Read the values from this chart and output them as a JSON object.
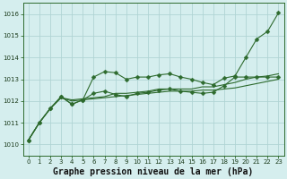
{
  "title": "Graphe pression niveau de la mer (hPa)",
  "bg_color": "#d5eeee",
  "grid_color": "#b0d4d4",
  "line_color": "#2d6a2d",
  "xlim": [
    -0.5,
    23.5
  ],
  "ylim": [
    1009.5,
    1016.5
  ],
  "yticks": [
    1010,
    1011,
    1012,
    1013,
    1014,
    1015,
    1016
  ],
  "xticks": [
    0,
    1,
    2,
    3,
    4,
    5,
    6,
    7,
    8,
    9,
    10,
    11,
    12,
    13,
    14,
    15,
    16,
    17,
    18,
    19,
    20,
    21,
    22,
    23
  ],
  "series": [
    {
      "y": [
        1010.2,
        1011.0,
        1011.65,
        1012.2,
        1011.85,
        1012.05,
        1013.1,
        1013.35,
        1013.3,
        1013.0,
        1013.1,
        1013.1,
        1013.2,
        1013.25,
        1013.1,
        1013.0,
        1012.85,
        1012.75,
        1013.05,
        1013.15,
        1014.0,
        1014.85,
        1015.2,
        1016.05
      ],
      "marker": true
    },
    {
      "y": [
        1010.2,
        1011.0,
        1011.65,
        1012.2,
        1011.85,
        1012.05,
        1012.35,
        1012.45,
        1012.3,
        1012.2,
        1012.35,
        1012.4,
        1012.5,
        1012.55,
        1012.45,
        1012.4,
        1012.35,
        1012.4,
        1012.7,
        1013.1,
        1013.1,
        1013.1,
        1013.1,
        1013.1
      ],
      "marker": true
    },
    {
      "y": [
        1010.2,
        1011.0,
        1011.65,
        1012.15,
        1012.05,
        1012.1,
        1012.15,
        1012.2,
        1012.35,
        1012.35,
        1012.4,
        1012.45,
        1012.55,
        1012.55,
        1012.55,
        1012.55,
        1012.65,
        1012.65,
        1012.75,
        1012.85,
        1013.0,
        1013.1,
        1013.15,
        1013.25
      ],
      "marker": false
    },
    {
      "y": [
        1010.2,
        1011.0,
        1011.65,
        1012.15,
        1012.0,
        1012.05,
        1012.1,
        1012.15,
        1012.2,
        1012.25,
        1012.3,
        1012.35,
        1012.4,
        1012.45,
        1012.45,
        1012.45,
        1012.5,
        1012.5,
        1012.55,
        1012.6,
        1012.7,
        1012.8,
        1012.9,
        1013.0
      ],
      "marker": false
    }
  ],
  "marker_size": 2.5,
  "marker_style": "D",
  "linewidth": 0.8,
  "title_fontsize": 7,
  "tick_fontsize": 5
}
